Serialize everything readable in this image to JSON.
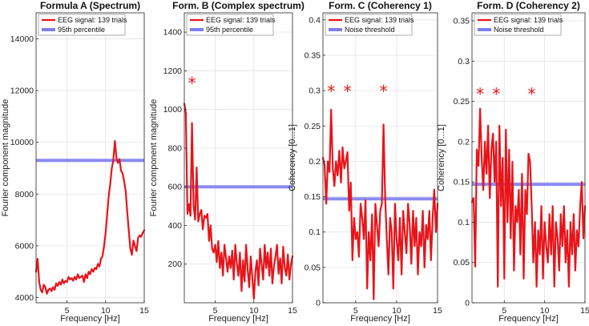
{
  "chart_data": [
    {
      "type": "line",
      "title": "Formula A (Spectrum)",
      "xlabel": "Frequency [Hz]",
      "ylabel": "Fourier component magnitude",
      "xlim": [
        1,
        15
      ],
      "ylim": [
        3800,
        15000
      ],
      "xticks": [
        5,
        10,
        15
      ],
      "yticks": [
        4000,
        6000,
        8000,
        10000,
        12000,
        14000
      ],
      "ytick_labels": [
        "4000",
        "6000",
        "8000",
        "10000",
        "12000",
        "14000"
      ],
      "legend": [
        "EEG signal: 139 trials",
        "95th percentile"
      ],
      "threshold": 9300,
      "markers": [],
      "x": [
        1.0,
        1.2,
        1.4,
        1.6,
        1.8,
        2.0,
        2.2,
        2.4,
        2.6,
        2.8,
        3.0,
        3.2,
        3.4,
        3.6,
        3.8,
        4.0,
        4.2,
        4.4,
        4.6,
        4.8,
        5.0,
        5.2,
        5.4,
        5.6,
        5.8,
        6.0,
        6.2,
        6.4,
        6.6,
        6.8,
        7.0,
        7.2,
        7.4,
        7.6,
        7.8,
        8.0,
        8.2,
        8.4,
        8.6,
        8.8,
        9.0,
        9.2,
        9.4,
        9.6,
        9.8,
        10.0,
        10.2,
        10.4,
        10.6,
        10.8,
        11.0,
        11.2,
        11.4,
        11.6,
        11.8,
        12.0,
        12.2,
        12.4,
        12.6,
        12.8,
        13.0,
        13.2,
        13.4,
        13.6,
        13.8,
        14.0,
        14.2,
        14.4,
        14.6,
        14.8,
        15.0
      ],
      "y": [
        5000,
        5500,
        4600,
        4300,
        4200,
        4500,
        4400,
        4150,
        4300,
        4350,
        4250,
        4400,
        4300,
        4550,
        4450,
        4600,
        4500,
        4700,
        4550,
        4650,
        4600,
        4800,
        4700,
        4750,
        4650,
        4800,
        4700,
        4900,
        4750,
        4800,
        4850,
        4600,
        4900,
        4750,
        5000,
        4900,
        5100,
        5000,
        5150,
        5100,
        5300,
        5200,
        5500,
        5600,
        6000,
        6500,
        7200,
        7900,
        8400,
        9000,
        9300,
        10050,
        9400,
        9200,
        9350,
        8900,
        8800,
        8500,
        8100,
        7300,
        6600,
        5900,
        5650,
        6200,
        6000,
        5800,
        6300,
        6400,
        6350,
        6500,
        6600
      ]
    },
    {
      "type": "line",
      "title": "Form. B (Complex spectrum)",
      "xlabel": "Frequency [Hz]",
      "ylabel": "Fourier component magnitude",
      "xlim": [
        1,
        15
      ],
      "ylim": [
        0,
        1500
      ],
      "xticks": [
        5,
        10,
        15
      ],
      "yticks": [
        200,
        400,
        600,
        800,
        1000,
        1200,
        1400
      ],
      "ytick_labels": [
        "200",
        "400",
        "600",
        "800",
        "1000",
        "1200",
        "1400"
      ],
      "legend": [
        "EEG signal: 139 trials",
        "95th percentile"
      ],
      "threshold": 600,
      "markers": [
        {
          "x": 2.0,
          "y": 1140
        }
      ],
      "x": [
        1.0,
        1.2,
        1.4,
        1.6,
        1.8,
        2.0,
        2.2,
        2.4,
        2.6,
        2.8,
        3.0,
        3.2,
        3.4,
        3.6,
        3.8,
        4.0,
        4.2,
        4.4,
        4.6,
        4.8,
        5.0,
        5.2,
        5.4,
        5.6,
        5.8,
        6.0,
        6.2,
        6.4,
        6.6,
        6.8,
        7.0,
        7.2,
        7.4,
        7.6,
        7.8,
        8.0,
        8.2,
        8.4,
        8.6,
        8.8,
        9.0,
        9.2,
        9.4,
        9.6,
        9.8,
        10.0,
        10.2,
        10.4,
        10.6,
        10.8,
        11.0,
        11.2,
        11.4,
        11.6,
        11.8,
        12.0,
        12.2,
        12.4,
        12.6,
        12.8,
        13.0,
        13.2,
        13.4,
        13.6,
        13.8,
        14.0,
        14.2,
        14.4,
        14.6,
        14.8,
        15.0
      ],
      "y": [
        1030,
        980,
        460,
        510,
        450,
        930,
        500,
        430,
        700,
        420,
        460,
        480,
        380,
        450,
        440,
        460,
        320,
        400,
        280,
        260,
        300,
        210,
        320,
        180,
        260,
        140,
        300,
        230,
        160,
        240,
        180,
        270,
        120,
        300,
        200,
        140,
        260,
        60,
        220,
        110,
        300,
        170,
        80,
        240,
        130,
        20,
        160,
        220,
        90,
        280,
        200,
        120,
        300,
        180,
        260,
        140,
        280,
        100,
        190,
        240,
        300,
        150,
        230,
        100,
        290,
        180,
        140,
        250,
        120,
        200,
        240
      ]
    },
    {
      "type": "line",
      "title": "Form. C (Coherency 1)",
      "xlabel": "Frequency [Hz]",
      "ylabel": "Coherency [0...1]",
      "xlim": [
        1,
        15
      ],
      "ylim": [
        0,
        0.41
      ],
      "xticks": [
        5,
        10,
        15
      ],
      "yticks": [
        0,
        0.05,
        0.1,
        0.15,
        0.2,
        0.25,
        0.3,
        0.35,
        0.4
      ],
      "ytick_labels": [
        "0",
        "0.05",
        "0.1",
        "0.15",
        "0.2",
        "0.25",
        "0.3",
        "0.35",
        "0.4"
      ],
      "legend": [
        "EEG signal: 139 trials",
        "Noise threshold"
      ],
      "threshold": 0.147,
      "markers": [
        {
          "x": 2.0,
          "y": 0.3
        },
        {
          "x": 4.0,
          "y": 0.3
        },
        {
          "x": 8.4,
          "y": 0.3
        }
      ],
      "x": [
        1.0,
        1.2,
        1.4,
        1.6,
        1.8,
        2.0,
        2.2,
        2.4,
        2.6,
        2.8,
        3.0,
        3.2,
        3.4,
        3.6,
        3.8,
        4.0,
        4.2,
        4.4,
        4.6,
        4.8,
        5.0,
        5.2,
        5.4,
        5.6,
        5.8,
        6.0,
        6.2,
        6.4,
        6.6,
        6.8,
        7.0,
        7.2,
        7.4,
        7.6,
        7.8,
        8.0,
        8.2,
        8.4,
        8.6,
        8.8,
        9.0,
        9.2,
        9.4,
        9.6,
        9.8,
        10.0,
        10.2,
        10.4,
        10.6,
        10.8,
        11.0,
        11.2,
        11.4,
        11.6,
        11.8,
        12.0,
        12.2,
        12.4,
        12.6,
        12.8,
        13.0,
        13.2,
        13.4,
        13.6,
        13.8,
        14.0,
        14.2,
        14.4,
        14.6,
        14.8,
        15.0
      ],
      "y": [
        0.205,
        0.195,
        0.14,
        0.2,
        0.185,
        0.273,
        0.19,
        0.165,
        0.2,
        0.18,
        0.215,
        0.17,
        0.22,
        0.19,
        0.2,
        0.213,
        0.13,
        0.17,
        0.06,
        0.12,
        0.09,
        0.1,
        0.065,
        0.14,
        0.12,
        0.09,
        0.145,
        0.02,
        0.1,
        0.06,
        0.125,
        0.005,
        0.14,
        0.11,
        0.08,
        0.13,
        0.14,
        0.252,
        0.15,
        0.09,
        0.04,
        0.12,
        0.1,
        0.02,
        0.14,
        0.09,
        0.06,
        0.12,
        0.04,
        0.13,
        0.1,
        0.07,
        0.14,
        0.11,
        0.055,
        0.13,
        0.08,
        0.12,
        0.04,
        0.1,
        0.08,
        0.13,
        0.05,
        0.11,
        0.09,
        0.13,
        0.06,
        0.12,
        0.16,
        0.1,
        0.14
      ]
    },
    {
      "type": "line",
      "title": "Form. D (Coherency 2)",
      "xlabel": "Frequency [Hz]",
      "ylabel": "Coherency [0...1]",
      "xlim": [
        1,
        15
      ],
      "ylim": [
        0,
        0.36
      ],
      "xticks": [
        5,
        10,
        15
      ],
      "yticks": [
        0,
        0.05,
        0.1,
        0.15,
        0.2,
        0.25,
        0.3,
        0.35
      ],
      "ytick_labels": [
        "0",
        "0.05",
        "0.1",
        "0.15",
        "0.2",
        "0.25",
        "0.3",
        "0.35"
      ],
      "legend": [
        "EEG signal: 139 trials",
        "Noise threshold"
      ],
      "threshold": 0.147,
      "markers": [
        {
          "x": 2.0,
          "y": 0.26
        },
        {
          "x": 4.0,
          "y": 0.26
        },
        {
          "x": 8.4,
          "y": 0.26
        }
      ],
      "x": [
        1.0,
        1.2,
        1.4,
        1.6,
        1.8,
        2.0,
        2.2,
        2.4,
        2.6,
        2.8,
        3.0,
        3.2,
        3.4,
        3.6,
        3.8,
        4.0,
        4.2,
        4.4,
        4.6,
        4.8,
        5.0,
        5.2,
        5.4,
        5.6,
        5.8,
        6.0,
        6.2,
        6.4,
        6.6,
        6.8,
        7.0,
        7.2,
        7.4,
        7.6,
        7.8,
        8.0,
        8.2,
        8.4,
        8.6,
        8.8,
        9.0,
        9.2,
        9.4,
        9.6,
        9.8,
        10.0,
        10.2,
        10.4,
        10.6,
        10.8,
        11.0,
        11.2,
        11.4,
        11.6,
        11.8,
        12.0,
        12.2,
        12.4,
        12.6,
        12.8,
        13.0,
        13.2,
        13.4,
        13.6,
        13.8,
        14.0,
        14.2,
        14.4,
        14.6,
        14.8,
        15.0
      ],
      "y": [
        0.125,
        0.13,
        0.045,
        0.19,
        0.17,
        0.241,
        0.18,
        0.14,
        0.2,
        0.16,
        0.22,
        0.13,
        0.19,
        0.21,
        0.15,
        0.2,
        0.02,
        0.22,
        0.12,
        0.18,
        0.03,
        0.215,
        0.1,
        0.19,
        0.08,
        0.175,
        0.04,
        0.12,
        0.1,
        0.14,
        0.06,
        0.16,
        0.03,
        0.14,
        0.11,
        0.185,
        0.175,
        0.12,
        0.05,
        0.1,
        0.02,
        0.09,
        0.06,
        0.12,
        0.03,
        0.1,
        0.07,
        0.05,
        0.11,
        0.06,
        0.12,
        0.02,
        0.1,
        0.08,
        0.04,
        0.11,
        0.07,
        0.12,
        0.05,
        0.09,
        0.02,
        0.1,
        0.06,
        0.11,
        0.04,
        0.09,
        0.07,
        0.12,
        0.15,
        0.08,
        0.12
      ]
    }
  ],
  "colors": {
    "signal": "#e8141a",
    "threshold": "#7d7df2",
    "grid": "#e4e4e4",
    "axis": "#262626"
  }
}
